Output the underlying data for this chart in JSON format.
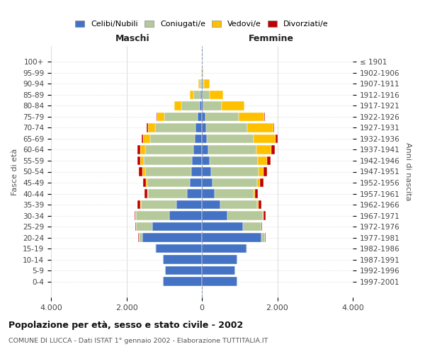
{
  "age_groups": [
    "100+",
    "95-99",
    "90-94",
    "85-89",
    "80-84",
    "75-79",
    "70-74",
    "65-69",
    "60-64",
    "55-59",
    "50-54",
    "45-49",
    "40-44",
    "35-39",
    "30-34",
    "25-29",
    "20-24",
    "15-19",
    "10-14",
    "5-9",
    "0-4"
  ],
  "birth_years": [
    "≤ 1901",
    "1902-1906",
    "1907-1911",
    "1912-1916",
    "1917-1921",
    "1922-1926",
    "1927-1931",
    "1932-1936",
    "1937-1941",
    "1942-1946",
    "1947-1951",
    "1952-1956",
    "1957-1961",
    "1962-1966",
    "1967-1971",
    "1972-1976",
    "1977-1981",
    "1982-1986",
    "1987-1991",
    "1992-1996",
    "1997-2001"
  ],
  "colors": {
    "celibi": "#4472c4",
    "coniugati": "#b5c99a",
    "vedovi": "#ffc000",
    "divorziati": "#c00000"
  },
  "males": {
    "celibi": [
      5,
      8,
      15,
      30,
      50,
      120,
      160,
      190,
      230,
      260,
      280,
      310,
      400,
      680,
      870,
      1320,
      1580,
      1220,
      1030,
      980,
      1030
    ],
    "coniugati": [
      2,
      8,
      45,
      190,
      490,
      880,
      1080,
      1180,
      1280,
      1280,
      1230,
      1130,
      1030,
      930,
      880,
      430,
      95,
      25,
      8,
      3,
      3
    ],
    "vedovi": [
      1,
      4,
      25,
      90,
      190,
      190,
      190,
      190,
      120,
      90,
      70,
      45,
      25,
      15,
      8,
      4,
      4,
      1,
      1,
      1,
      1
    ],
    "divorziati": [
      0,
      0,
      0,
      4,
      8,
      18,
      28,
      45,
      75,
      85,
      95,
      75,
      65,
      75,
      28,
      8,
      4,
      1,
      0,
      0,
      0
    ]
  },
  "females": {
    "nubili": [
      4,
      8,
      15,
      25,
      45,
      90,
      120,
      140,
      170,
      200,
      240,
      290,
      340,
      490,
      680,
      1080,
      1580,
      1180,
      930,
      880,
      930
    ],
    "coniugati": [
      1,
      8,
      45,
      190,
      490,
      880,
      1080,
      1230,
      1280,
      1280,
      1260,
      1180,
      1030,
      980,
      930,
      490,
      95,
      25,
      8,
      3,
      3
    ],
    "vedovi": [
      4,
      25,
      140,
      340,
      590,
      690,
      690,
      590,
      390,
      240,
      140,
      75,
      45,
      25,
      18,
      8,
      4,
      1,
      1,
      1,
      1
    ],
    "divorziati": [
      0,
      0,
      0,
      4,
      8,
      18,
      28,
      45,
      95,
      95,
      95,
      85,
      75,
      85,
      55,
      12,
      4,
      1,
      0,
      0,
      0
    ]
  },
  "xlim": 4000,
  "title": "Popolazione per età, sesso e stato civile - 2002",
  "subtitle": "COMUNE DI LUCCA - Dati ISTAT 1° gennaio 2002 - Elaborazione TUTTITALIA.IT",
  "ylabel_left": "Fasce di età",
  "ylabel_right": "Anni di nascita",
  "xlabel_left": "Maschi",
  "xlabel_right": "Femmine",
  "legend_labels": [
    "Celibi/Nubili",
    "Coniugati/e",
    "Vedovi/e",
    "Divorziati/e"
  ],
  "bg_color": "#ffffff",
  "grid_color": "#cccccc",
  "bar_edge_color": "white"
}
